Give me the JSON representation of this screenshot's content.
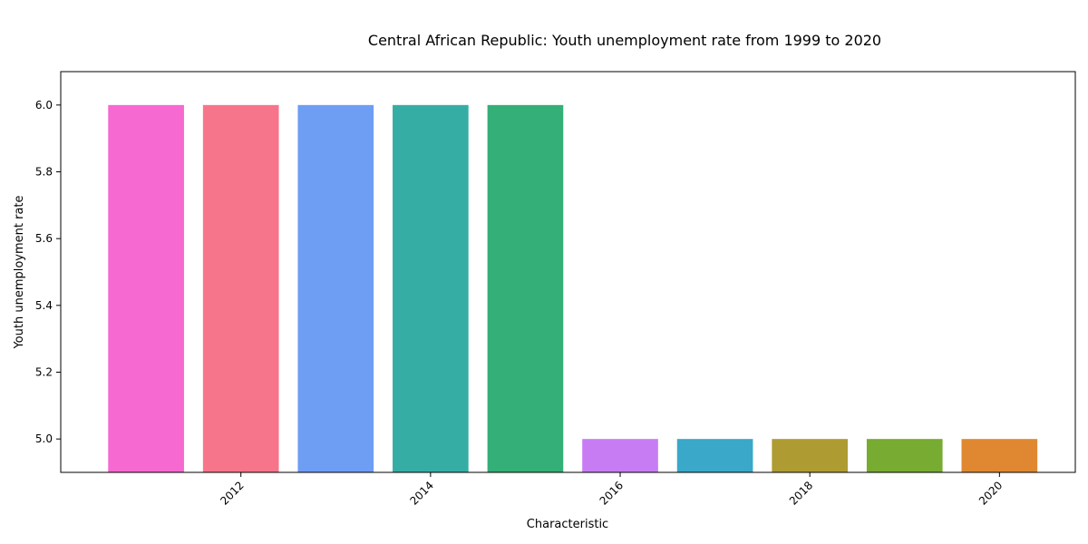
{
  "chart_data": {
    "type": "bar",
    "title": "Central African Republic: Youth unemployment rate from 1999 to 2020",
    "xlabel": "Characteristic",
    "ylabel": "Youth unemployment rate",
    "x": [
      2011,
      2012,
      2013,
      2014,
      2015,
      2016,
      2017,
      2018,
      2019,
      2020
    ],
    "values": [
      6,
      6,
      6,
      6,
      6,
      5,
      5,
      5,
      5,
      5
    ],
    "colors": [
      "#f569d0",
      "#f7758a",
      "#6e9df4",
      "#36ada4",
      "#34af77",
      "#c87cf3",
      "#39a8c9",
      "#ae9c32",
      "#77ab31",
      "#e08831"
    ],
    "xlim": [
      2010.1,
      2020.8
    ],
    "ylim": [
      4.9,
      6.1
    ],
    "xticks": [
      2012,
      2014,
      2016,
      2018,
      2020
    ],
    "yticks": [
      "5.0",
      "5.2",
      "5.4",
      "5.6",
      "5.8",
      "6.0"
    ],
    "grid": false,
    "legend": "none"
  }
}
